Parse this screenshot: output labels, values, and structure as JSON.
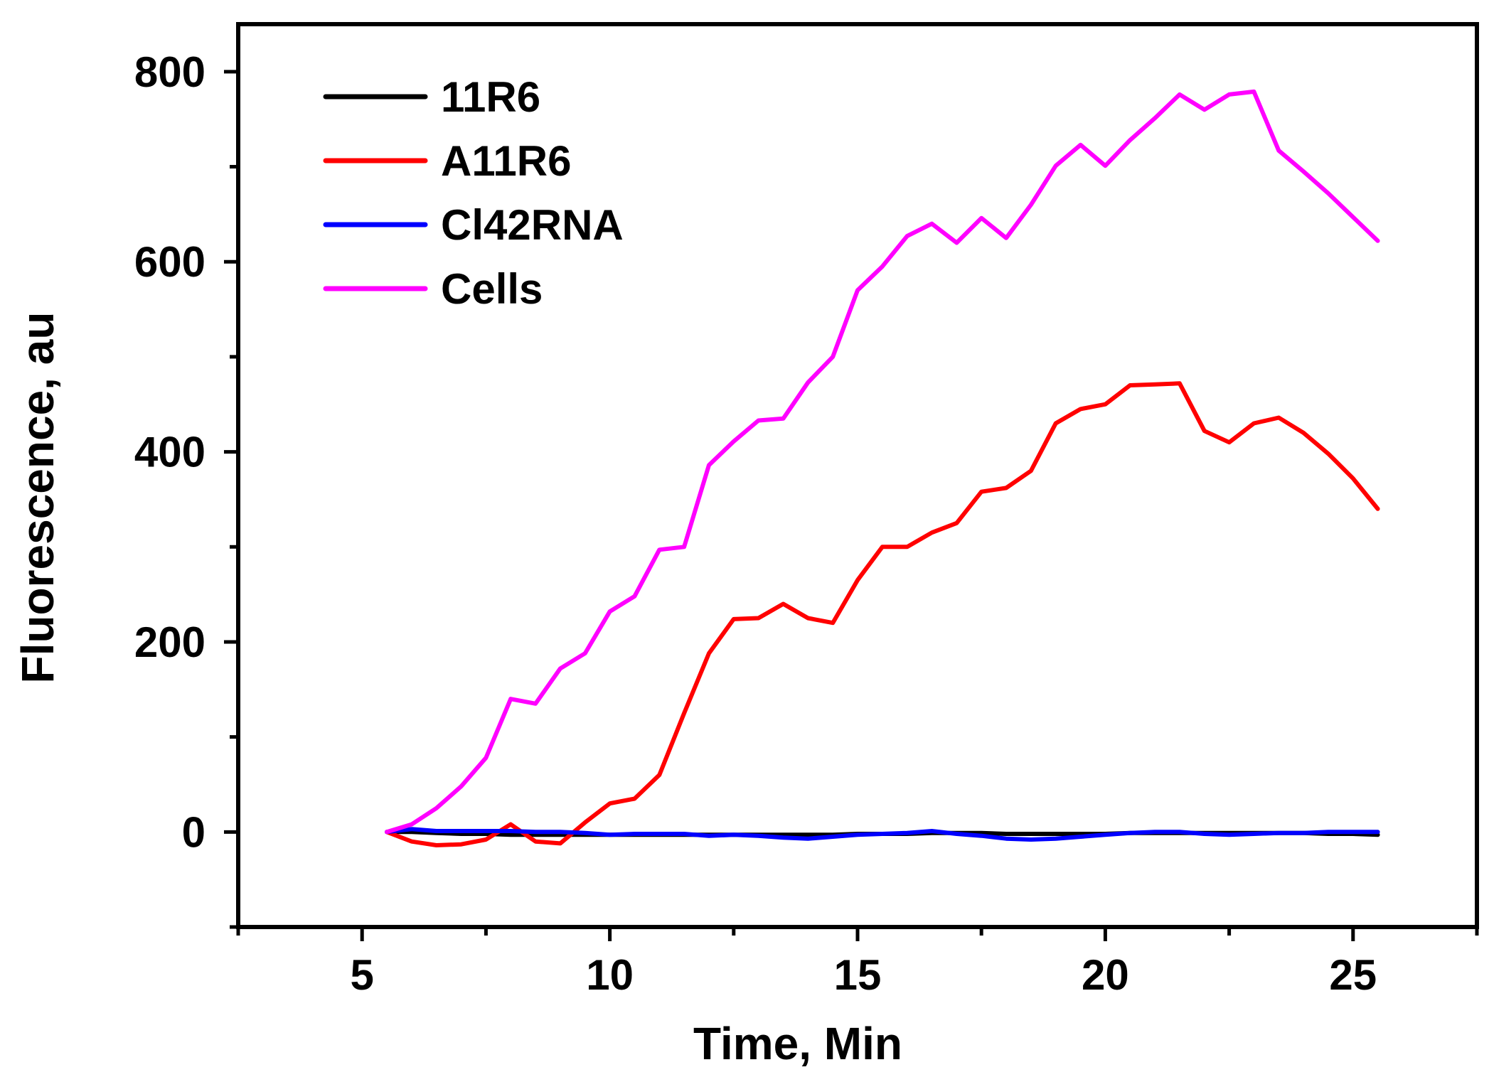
{
  "chart_data": {
    "type": "line",
    "title": "",
    "xlabel": "Time, Min",
    "ylabel": "Fluorescence, au",
    "xlim": [
      2.5,
      27.5
    ],
    "ylim": [
      -100,
      850
    ],
    "x_ticks": [
      5,
      10,
      15,
      20,
      25
    ],
    "x_tick_labels": [
      "5",
      "10",
      "15",
      "20",
      "25"
    ],
    "x_minor_ticks": [
      2.5,
      7.5,
      12.5,
      17.5,
      22.5,
      27.5
    ],
    "y_ticks": [
      0,
      200,
      400,
      600,
      800
    ],
    "y_tick_labels": [
      "0",
      "200",
      "400",
      "600",
      "800"
    ],
    "y_minor_ticks": [
      -100,
      100,
      300,
      500,
      700
    ],
    "grid": false,
    "legend_position": "top-left",
    "x": [
      5.5,
      6.0,
      6.5,
      7.0,
      7.5,
      8.0,
      8.5,
      9.0,
      9.5,
      10.0,
      10.5,
      11.0,
      11.5,
      12.0,
      12.5,
      13.0,
      13.5,
      14.0,
      14.5,
      15.0,
      15.5,
      16.0,
      16.5,
      17.0,
      17.5,
      18.0,
      18.5,
      19.0,
      19.5,
      20.0,
      20.5,
      21.0,
      21.5,
      22.0,
      22.5,
      23.0,
      23.5,
      24.0,
      24.5,
      25.0,
      25.5
    ],
    "series": [
      {
        "name": "11R6",
        "color": "#000000",
        "values": [
          0,
          0,
          -1,
          -2,
          -2,
          -3,
          -3,
          -3,
          -3,
          -3,
          -3,
          -3,
          -3,
          -3,
          -3,
          -3,
          -3,
          -3,
          -3,
          -2,
          -2,
          -2,
          -1,
          -1,
          -1,
          -2,
          -2,
          -2,
          -2,
          -2,
          -1,
          -1,
          -1,
          -1,
          -1,
          -1,
          -1,
          -1,
          -2,
          -2,
          -3
        ]
      },
      {
        "name": "A11R6",
        "color": "#ff0000",
        "values": [
          0,
          -10,
          -14,
          -13,
          -8,
          8,
          -10,
          -12,
          10,
          30,
          35,
          60,
          125,
          188,
          224,
          225,
          240,
          225,
          220,
          265,
          300,
          300,
          315,
          325,
          358,
          362,
          380,
          430,
          445,
          450,
          470,
          471,
          472,
          422,
          410,
          430,
          436,
          420,
          398,
          372,
          340
        ]
      },
      {
        "name": "Cl42RNA",
        "color": "#0000ff",
        "values": [
          0,
          3,
          1,
          1,
          1,
          1,
          0,
          0,
          -1,
          -3,
          -2,
          -2,
          -2,
          -4,
          -3,
          -4,
          -6,
          -7,
          -5,
          -3,
          -2,
          -1,
          1,
          -2,
          -4,
          -7,
          -8,
          -7,
          -5,
          -3,
          -1,
          0,
          0,
          -2,
          -3,
          -2,
          -1,
          -1,
          0,
          0,
          0
        ]
      },
      {
        "name": "Cells",
        "color": "#ff00ff",
        "values": [
          0,
          8,
          25,
          48,
          78,
          140,
          135,
          172,
          188,
          232,
          248,
          297,
          300,
          386,
          411,
          433,
          435,
          473,
          500,
          570,
          595,
          627,
          640,
          620,
          646,
          625,
          660,
          701,
          723,
          701,
          728,
          751,
          776,
          760,
          776,
          779,
          717,
          695,
          672,
          647,
          622
        ]
      }
    ]
  }
}
